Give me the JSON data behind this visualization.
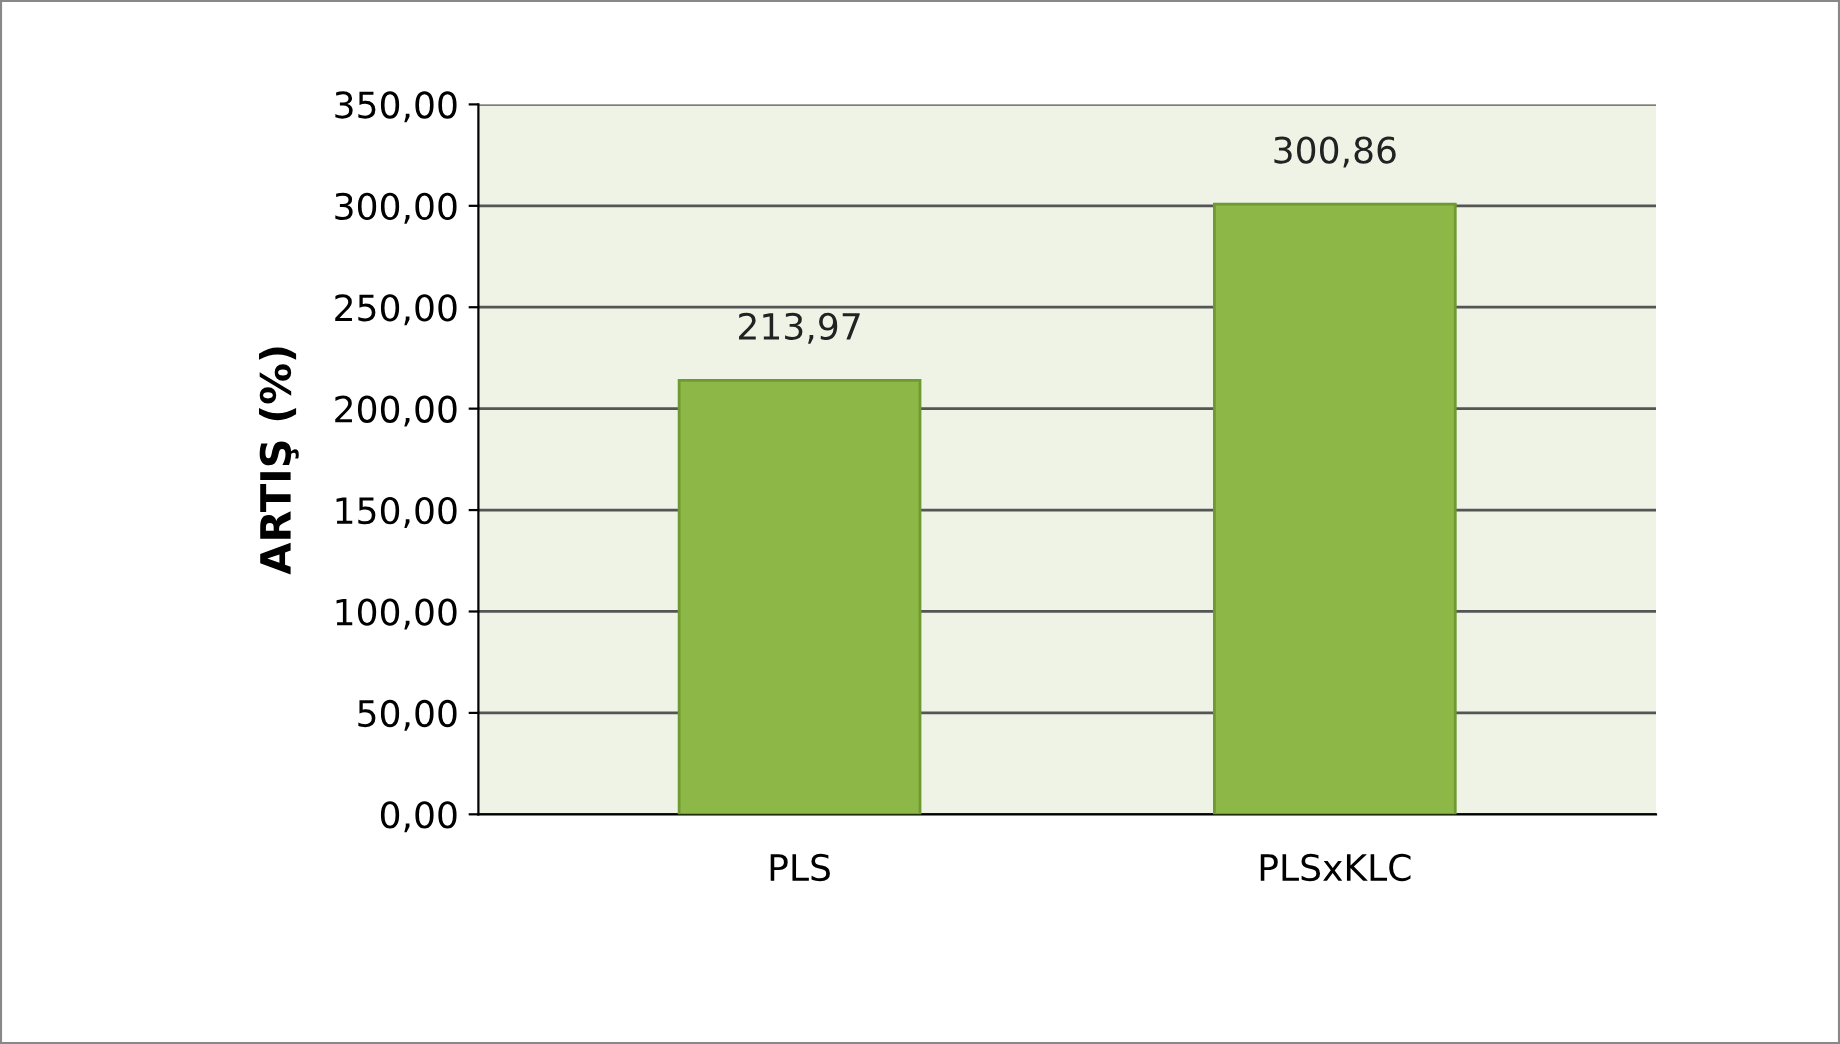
{
  "chart_data": {
    "type": "bar",
    "ylabel": "ARTIŞ (%)",
    "categories": [
      "PLS",
      "PLSxKLC"
    ],
    "values": [
      213.97,
      300.86
    ],
    "value_labels": [
      "213,97",
      "300,86"
    ],
    "color": "#8db848",
    "ylim": [
      0,
      350
    ],
    "yticks": [
      {
        "value": 0,
        "label": "0,00"
      },
      {
        "value": 50,
        "label": "50,00"
      },
      {
        "value": 100,
        "label": "100,00"
      },
      {
        "value": 150,
        "label": "150,00"
      },
      {
        "value": 200,
        "label": "200,00"
      },
      {
        "value": 250,
        "label": "250,00"
      },
      {
        "value": 300,
        "label": "300,00"
      },
      {
        "value": 350,
        "label": "350,00"
      }
    ],
    "grid": "y"
  }
}
